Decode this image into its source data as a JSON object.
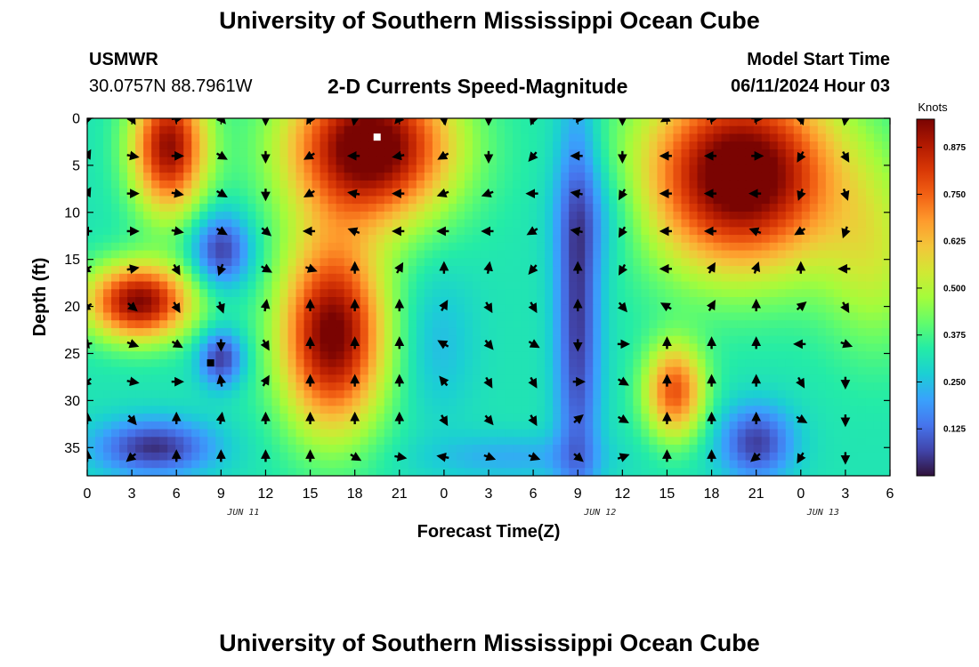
{
  "header": {
    "title": "University of Southern Mississippi Ocean Cube",
    "station": "USMWR",
    "coords": "30.0757N  88.7961W",
    "subtitle": "2-D Currents Speed-Magnitude",
    "model_start_label": "Model Start Time",
    "model_start_value": "06/11/2024 Hour 03"
  },
  "footer": {
    "title": "University of Southern Mississippi Ocean Cube"
  },
  "chart_data": {
    "type": "heatmap",
    "title": "2-D Currents Speed-Magnitude",
    "xlabel": "Forecast Time(Z)",
    "ylabel": "Depth (ft)",
    "x_tick_labels": [
      "0",
      "3",
      "6",
      "9",
      "12",
      "15",
      "18",
      "21",
      "0",
      "3",
      "6",
      "9",
      "12",
      "15",
      "18",
      "21",
      "0",
      "3",
      "6"
    ],
    "x_date_labels": [
      {
        "label": "JUN 11",
        "at_tick": 3.5
      },
      {
        "label": "JUN 12",
        "at_tick": 11.5
      },
      {
        "label": "JUN 13",
        "at_tick": 16.5
      }
    ],
    "x_range_hours": [
      0,
      54
    ],
    "y_ticks": [
      0,
      5,
      10,
      15,
      20,
      25,
      30,
      35
    ],
    "y_range": [
      0,
      38
    ],
    "y_inverted": true,
    "colorbar": {
      "label": "Knots",
      "tick_labels": [
        "0.125",
        "0.250",
        "0.375",
        "0.500",
        "0.625",
        "0.750",
        "0.875"
      ],
      "tick_values": [
        0.125,
        0.25,
        0.375,
        0.5,
        0.625,
        0.75,
        0.875
      ],
      "range": [
        0,
        0.95
      ],
      "colors": [
        "#30123b",
        "#4145ab",
        "#4675ed",
        "#39a2fc",
        "#1bcfd4",
        "#24eca6",
        "#61fc6c",
        "#a4fc3b",
        "#d1e834",
        "#f3c63a",
        "#fe9b2d",
        "#f36315",
        "#d93806",
        "#b11901",
        "#7a0402"
      ]
    },
    "speed_blobs": [
      {
        "x": 5.5,
        "y": 3,
        "rx": 2.5,
        "ry": 7,
        "v": 0.6
      },
      {
        "x": 3.5,
        "y": 19.5,
        "rx": 3.5,
        "ry": 4,
        "v": 0.62
      },
      {
        "x": 4.5,
        "y": 35,
        "rx": 4,
        "ry": 3,
        "v": -0.28
      },
      {
        "x": 9,
        "y": 14,
        "rx": 2,
        "ry": 4,
        "v": -0.27
      },
      {
        "x": 9,
        "y": 25.5,
        "rx": 1.5,
        "ry": 3,
        "v": -0.27
      },
      {
        "x": 19,
        "y": 3,
        "rx": 5.5,
        "ry": 8,
        "v": 0.7
      },
      {
        "x": 16.5,
        "y": 23,
        "rx": 3.5,
        "ry": 10,
        "v": 0.65
      },
      {
        "x": 23.5,
        "y": 24,
        "rx": 2.5,
        "ry": 8,
        "v": -0.08
      },
      {
        "x": 33,
        "y": 20,
        "rx": 1.5,
        "ry": 22,
        "v": -0.27
      },
      {
        "x": 34.5,
        "y": 10,
        "rx": 3,
        "ry": 6,
        "v": -0.1
      },
      {
        "x": 44,
        "y": 6,
        "rx": 6.5,
        "ry": 10,
        "v": 0.72
      },
      {
        "x": 39.5,
        "y": 29,
        "rx": 2,
        "ry": 5,
        "v": 0.45
      },
      {
        "x": 45,
        "y": 34.5,
        "rx": 2.5,
        "ry": 4,
        "v": -0.26
      },
      {
        "x": 53,
        "y": 15,
        "rx": 3.5,
        "ry": 10,
        "v": 0.18
      },
      {
        "x": 28.5,
        "y": 36,
        "rx": 6,
        "ry": 2.5,
        "v": -0.1
      }
    ],
    "vector_rows_depth": [
      0,
      4,
      8,
      12,
      16,
      20,
      24,
      28,
      32,
      36
    ],
    "vector_cols_hours": [
      0,
      3,
      6,
      9,
      12,
      15,
      18,
      21,
      24,
      27,
      30,
      33,
      36,
      39,
      42,
      45,
      48,
      51
    ],
    "vector_directions_deg": [
      [
        200,
        150,
        80,
        140,
        180,
        210,
        190,
        220,
        170,
        180,
        200,
        90,
        180,
        240,
        80,
        90,
        160,
        190
      ],
      [
        30,
        100,
        90,
        120,
        180,
        240,
        270,
        260,
        240,
        180,
        220,
        270,
        180,
        270,
        270,
        90,
        210,
        150
      ],
      [
        30,
        90,
        100,
        120,
        180,
        240,
        280,
        270,
        250,
        250,
        270,
        280,
        210,
        270,
        270,
        270,
        200,
        160
      ],
      [
        270,
        90,
        100,
        120,
        130,
        270,
        290,
        270,
        270,
        270,
        240,
        280,
        210,
        270,
        270,
        290,
        240,
        200
      ],
      [
        240,
        80,
        150,
        200,
        120,
        110,
        0,
        30,
        0,
        10,
        220,
        0,
        210,
        270,
        30,
        20,
        0,
        270
      ],
      [
        240,
        130,
        150,
        160,
        10,
        0,
        0,
        0,
        30,
        150,
        150,
        0,
        140,
        300,
        30,
        0,
        50,
        150
      ],
      [
        260,
        110,
        120,
        180,
        150,
        0,
        0,
        0,
        300,
        140,
        120,
        180,
        90,
        0,
        0,
        0,
        270,
        110
      ],
      [
        230,
        100,
        90,
        350,
        30,
        0,
        0,
        0,
        320,
        150,
        150,
        90,
        120,
        0,
        0,
        0,
        150,
        180
      ],
      [
        0,
        140,
        0,
        10,
        0,
        0,
        0,
        0,
        150,
        140,
        150,
        50,
        120,
        0,
        0,
        0,
        120,
        180
      ],
      [
        0,
        230,
        0,
        0,
        0,
        0,
        120,
        100,
        280,
        110,
        110,
        130,
        70,
        0,
        0,
        230,
        210,
        180
      ]
    ],
    "markers": [
      {
        "shape": "square",
        "color": "#ffffff",
        "x": 19.5,
        "y": 2
      },
      {
        "shape": "square",
        "color": "#000000",
        "x": 8.3,
        "y": 26
      }
    ]
  }
}
